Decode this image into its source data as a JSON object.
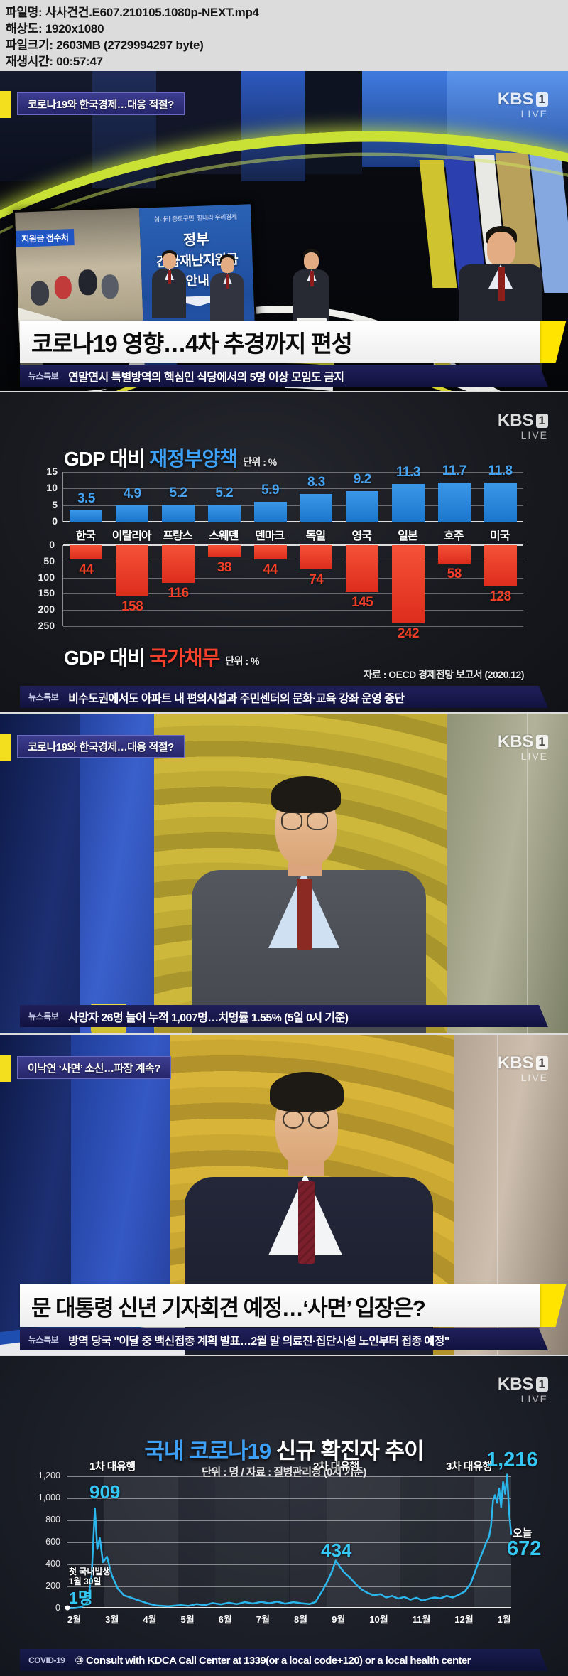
{
  "meta": {
    "lines": [
      {
        "label": "파일명:",
        "value": "사사건건.E607.210105.1080p-NEXT.mp4"
      },
      {
        "label": "해상도:",
        "value": "1920x1080"
      },
      {
        "label": "파일크기:",
        "value": "2603MB (2729994297 byte)"
      },
      {
        "label": "재생시간:",
        "value": "00:57:47"
      }
    ]
  },
  "kbs": {
    "brand": "KBS",
    "channel": "1",
    "live": "LIVE"
  },
  "frames": {
    "f1": {
      "topic": "코로나19와 한국경제…대응 적절?",
      "screen": {
        "photo_tag": "지원금 접수처",
        "banner": "힘내라 종로구민, 힘내라 우리경제",
        "poster_l1": "정부",
        "poster_l2": "긴급재난지원금",
        "poster_l3": "안내"
      },
      "headline": "코로나19 영향…4차 추경까지 편성",
      "ticker_label": "뉴스특보",
      "ticker": "연말연시 특별방역의 핵심인 식당에서의 5명 이상 모임도 금지"
    },
    "f2": {
      "ticker_label": "뉴스특보",
      "ticker": "비수도권에서도 아파트 내 편의시설과 주민센터의 문화·교육 강좌 운영 중단"
    },
    "f3": {
      "topic": "코로나19와 한국경제…대응 적절?",
      "ticker_label": "뉴스특보",
      "ticker": "사망자 26명 늘어 누적 1,007명…치명률 1.55% (5일 0시 기준)"
    },
    "f4": {
      "topic": "이낙연 ‘사면’ 소신…파장 계속?",
      "headline": "문 대통령 신년 기자회견 예정…‘사면’ 입장은?",
      "ticker_label": "뉴스특보",
      "ticker": "방역 당국 \"이달 중 백신접종 계획 발표…2월 말 의료진·집단시설 노인부터 접종 예정\""
    },
    "f5": {
      "ticker_label": "COVID-19",
      "ticker": "③ Consult with KDCA Call Center at 1339(or a local code+120) or a local health center"
    }
  },
  "chart_data": [
    {
      "type": "bar",
      "title": "GDP 대비 재정부양책",
      "title_prefix": "GDP 대비 ",
      "title_highlight": "재정부양책",
      "unit": "단위 : %",
      "categories": [
        "한국",
        "이탈리아",
        "프랑스",
        "스웨덴",
        "덴마크",
        "독일",
        "영국",
        "일본",
        "호주",
        "미국"
      ],
      "values": [
        3.5,
        4.9,
        5.2,
        5.2,
        5.9,
        8.3,
        9.2,
        11.3,
        11.7,
        11.8
      ],
      "ylim": [
        0,
        15
      ],
      "yticks": [
        0,
        5,
        10,
        15
      ],
      "bar_color_top": "#3b97e8",
      "bar_color_bottom": "#1a77cc",
      "value_color": "#46a4f2",
      "legend_position": "none",
      "grid": true
    },
    {
      "type": "bar",
      "orientation": "inverted",
      "title": "GDP 대비 국가채무",
      "title_prefix": "GDP 대비 ",
      "title_highlight": "국가채무",
      "unit": "단위 : %",
      "categories": [
        "한국",
        "이탈리아",
        "프랑스",
        "스웨덴",
        "덴마크",
        "독일",
        "영국",
        "일본",
        "호주",
        "미국"
      ],
      "values": [
        44,
        158,
        116,
        38,
        44,
        74,
        145,
        242,
        58,
        128
      ],
      "ylim": [
        0,
        250
      ],
      "yticks": [
        0,
        50,
        100,
        150,
        200,
        250
      ],
      "bar_color_top": "#f55238",
      "bar_color_bottom": "#dd2c1c",
      "value_color": "#f43f28",
      "source": "자료 : OECD 경제전망 보고서 (2020.12)",
      "grid": true
    },
    {
      "type": "line",
      "title_highlight": "국내 코로나19",
      "title_rest": " 신규 확진자 추이",
      "subtitle": "단위 : 명 / 자료 : 질병관리청 (0시 기준)",
      "x_labels": [
        "2월",
        "3월",
        "4월",
        "5월",
        "6월",
        "7월",
        "8월",
        "9월",
        "10월",
        "11월",
        "12월",
        "1월"
      ],
      "ylim": [
        0,
        1200
      ],
      "ytick_labels": [
        "1,200",
        "1,000",
        "800",
        "600",
        "400",
        "200",
        "0"
      ],
      "line_color": "#2bb7ee",
      "grid": true,
      "annotations": {
        "wave1": "1차 대유행",
        "wave2": "2차 대유행",
        "wave3": "3차 대유행",
        "peak1": "909",
        "peak2": "434",
        "peak3": "1,216",
        "today_label": "오늘",
        "today_value": "672",
        "first_case_l1": "첫 국내발생",
        "first_case_l2": "1월 30일",
        "first_case_value": "1명"
      },
      "points": [
        [
          0,
          1
        ],
        [
          0.2,
          4
        ],
        [
          0.35,
          12
        ],
        [
          0.5,
          60
        ],
        [
          0.6,
          300
        ],
        [
          0.68,
          909
        ],
        [
          0.74,
          540
        ],
        [
          0.8,
          640
        ],
        [
          0.88,
          420
        ],
        [
          0.98,
          470
        ],
        [
          1.1,
          300
        ],
        [
          1.25,
          180
        ],
        [
          1.4,
          120
        ],
        [
          1.6,
          95
        ],
        [
          1.8,
          70
        ],
        [
          2.0,
          45
        ],
        [
          2.2,
          28
        ],
        [
          2.5,
          20
        ],
        [
          2.8,
          30
        ],
        [
          3.0,
          24
        ],
        [
          3.2,
          40
        ],
        [
          3.4,
          30
        ],
        [
          3.6,
          50
        ],
        [
          3.8,
          38
        ],
        [
          4.0,
          52
        ],
        [
          4.2,
          40
        ],
        [
          4.4,
          58
        ],
        [
          4.6,
          45
        ],
        [
          4.8,
          60
        ],
        [
          5.0,
          48
        ],
        [
          5.2,
          62
        ],
        [
          5.4,
          44
        ],
        [
          5.6,
          58
        ],
        [
          5.8,
          48
        ],
        [
          6.0,
          40
        ],
        [
          6.15,
          60
        ],
        [
          6.3,
          150
        ],
        [
          6.45,
          250
        ],
        [
          6.55,
          330
        ],
        [
          6.65,
          434
        ],
        [
          6.75,
          380
        ],
        [
          6.85,
          330
        ],
        [
          7.0,
          280
        ],
        [
          7.15,
          220
        ],
        [
          7.3,
          170
        ],
        [
          7.45,
          140
        ],
        [
          7.6,
          120
        ],
        [
          7.75,
          130
        ],
        [
          7.9,
          100
        ],
        [
          8.05,
          115
        ],
        [
          8.2,
          90
        ],
        [
          8.35,
          105
        ],
        [
          8.5,
          80
        ],
        [
          8.65,
          98
        ],
        [
          8.8,
          72
        ],
        [
          8.95,
          88
        ],
        [
          9.1,
          100
        ],
        [
          9.25,
          92
        ],
        [
          9.4,
          115
        ],
        [
          9.55,
          100
        ],
        [
          9.7,
          125
        ],
        [
          9.85,
          155
        ],
        [
          10.0,
          230
        ],
        [
          10.1,
          330
        ],
        [
          10.2,
          430
        ],
        [
          10.3,
          520
        ],
        [
          10.38,
          600
        ],
        [
          10.45,
          650
        ],
        [
          10.5,
          750
        ],
        [
          10.55,
          980
        ],
        [
          10.6,
          1030
        ],
        [
          10.65,
          960
        ],
        [
          10.7,
          1090
        ],
        [
          10.75,
          920
        ],
        [
          10.8,
          1150
        ],
        [
          10.85,
          1040
        ],
        [
          10.9,
          1216
        ],
        [
          10.95,
          860
        ],
        [
          11,
          672
        ]
      ]
    }
  ]
}
